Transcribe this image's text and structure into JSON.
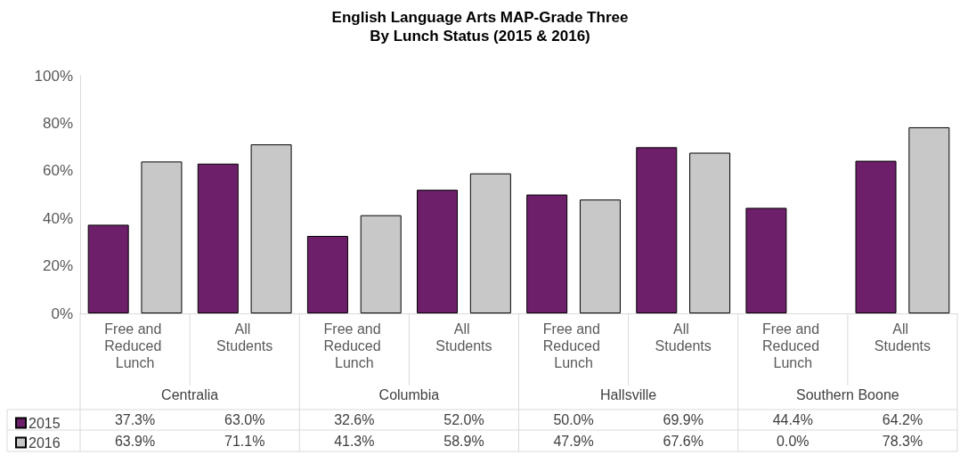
{
  "chart_data": {
    "type": "bar",
    "title": "English Language Arts MAP-Grade Three",
    "subtitle": "By Lunch Status (2015 & 2016)",
    "categories": [
      "Free and Reduced Lunch",
      "All Students",
      "Free and Reduced Lunch",
      "All Students",
      "Free and Reduced Lunch",
      "All Students",
      "Free and Reduced Lunch",
      "All Students"
    ],
    "annotations": [
      "Centralia",
      "Columbia",
      "Hallsville",
      "Southern Boone"
    ],
    "series": [
      {
        "name": "2015",
        "color": "#6d1f6a",
        "values": [
          37.3,
          63.0,
          32.6,
          52.0,
          50.0,
          69.9,
          44.4,
          64.2
        ],
        "value_labels": [
          "37.3%",
          "63.0%",
          "32.6%",
          "52.0%",
          "50.0%",
          "69.9%",
          "44.4%",
          "64.2%"
        ]
      },
      {
        "name": "2016",
        "color": "#c8c8c8",
        "values": [
          63.9,
          71.1,
          41.3,
          58.9,
          47.9,
          67.6,
          0.0,
          78.3
        ],
        "value_labels": [
          "63.9%",
          "71.1%",
          "41.3%",
          "58.9%",
          "47.9%",
          "67.6%",
          "0.0%",
          "78.3%"
        ]
      }
    ],
    "ylim": [
      0,
      100
    ],
    "yticks": [
      {
        "value": 0,
        "label": "0%"
      },
      {
        "value": 20,
        "label": "20%"
      },
      {
        "value": 40,
        "label": "40%"
      },
      {
        "value": 60,
        "label": "60%"
      },
      {
        "value": 80,
        "label": "80%"
      },
      {
        "value": 100,
        "label": "100%"
      }
    ],
    "grid": false,
    "legend": "bottom left"
  }
}
